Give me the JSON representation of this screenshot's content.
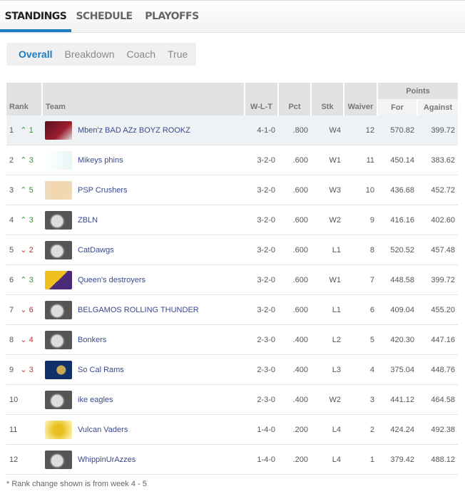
{
  "tabs": [
    "STANDINGS",
    "SCHEDULE",
    "PLAYOFFS"
  ],
  "subnav": [
    "Overall",
    "Breakdown",
    "Coach",
    "True"
  ],
  "headers": {
    "rank": "Rank",
    "team": "Team",
    "wlt": "W-L-T",
    "pct": "Pct",
    "stk": "Stk",
    "waiver": "Waiver",
    "points": "Points",
    "for": "For",
    "against": "Against"
  },
  "colors": {
    "accent": "#1a7cc1",
    "up": "#2a9a2a",
    "down": "#c43030"
  },
  "rows": [
    {
      "rank": "1",
      "dir": "up",
      "chg": "1",
      "team": "Mben'z BAD AZz BOYZ ROOKZ",
      "logo": "cardinals",
      "wlt": "4-1-0",
      "pct": ".800",
      "stk": "W4",
      "waiver": "12",
      "pf": "570.82",
      "pa": "399.72"
    },
    {
      "rank": "2",
      "dir": "up",
      "chg": "3",
      "team": "Mikeys phins",
      "logo": "dolphins",
      "wlt": "3-2-0",
      "pct": ".600",
      "stk": "W1",
      "waiver": "11",
      "pf": "450.14",
      "pa": "383.62"
    },
    {
      "rank": "3",
      "dir": "up",
      "chg": "5",
      "team": "PSP Crushers",
      "logo": "baby",
      "wlt": "3-2-0",
      "pct": ".600",
      "stk": "W3",
      "waiver": "10",
      "pf": "436.68",
      "pa": "452.72"
    },
    {
      "rank": "4",
      "dir": "up",
      "chg": "3",
      "team": "ZBLN",
      "logo": "helmet",
      "wlt": "3-2-0",
      "pct": ".600",
      "stk": "W2",
      "waiver": "9",
      "pf": "416.16",
      "pa": "402.60"
    },
    {
      "rank": "5",
      "dir": "down",
      "chg": "2",
      "team": "CatDawgs",
      "logo": "helmet",
      "wlt": "3-2-0",
      "pct": ".600",
      "stk": "L1",
      "waiver": "8",
      "pf": "520.52",
      "pa": "457.48"
    },
    {
      "rank": "6",
      "dir": "up",
      "chg": "3",
      "team": "Queen's destroyers",
      "logo": "vikings",
      "wlt": "3-2-0",
      "pct": ".600",
      "stk": "W1",
      "waiver": "7",
      "pf": "448.58",
      "pa": "399.72"
    },
    {
      "rank": "7",
      "dir": "down",
      "chg": "6",
      "team": "BELGAMOS ROLLING THUNDER",
      "logo": "helmet",
      "wlt": "3-2-0",
      "pct": ".600",
      "stk": "L1",
      "waiver": "6",
      "pf": "409.04",
      "pa": "455.20"
    },
    {
      "rank": "8",
      "dir": "down",
      "chg": "4",
      "team": "Bonkers",
      "logo": "helmet",
      "wlt": "2-3-0",
      "pct": ".400",
      "stk": "L2",
      "waiver": "5",
      "pf": "420.30",
      "pa": "447.16"
    },
    {
      "rank": "9",
      "dir": "down",
      "chg": "3",
      "team": "So Cal Rams",
      "logo": "rams",
      "wlt": "2-3-0",
      "pct": ".400",
      "stk": "L3",
      "waiver": "4",
      "pf": "375.04",
      "pa": "448.76"
    },
    {
      "rank": "10",
      "dir": "",
      "chg": "",
      "team": "ike eagles",
      "logo": "helmet",
      "wlt": "2-3-0",
      "pct": ".400",
      "stk": "W2",
      "waiver": "3",
      "pf": "441.12",
      "pa": "464.58"
    },
    {
      "rank": "11",
      "dir": "",
      "chg": "",
      "team": "Vulcan Vaders",
      "logo": "vaders",
      "wlt": "1-4-0",
      "pct": ".200",
      "stk": "L4",
      "waiver": "2",
      "pf": "424.24",
      "pa": "492.38"
    },
    {
      "rank": "12",
      "dir": "",
      "chg": "",
      "team": "WhippinUrAzzes",
      "logo": "helmet",
      "wlt": "1-4-0",
      "pct": ".200",
      "stk": "L4",
      "waiver": "1",
      "pf": "379.42",
      "pa": "488.12"
    }
  ],
  "footnote": "* Rank change shown is from week 4 - 5"
}
